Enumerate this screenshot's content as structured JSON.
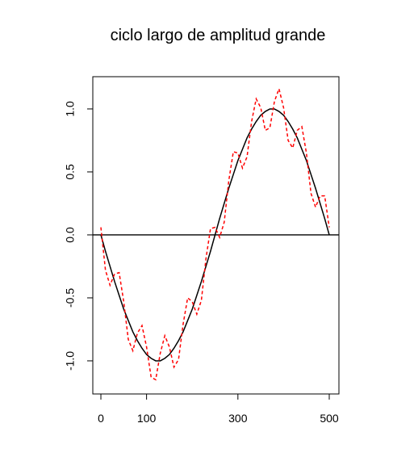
{
  "chart_data": {
    "type": "line",
    "title": "ciclo largo de amplitud grande",
    "x": [
      0,
      10,
      20,
      30,
      40,
      50,
      60,
      70,
      80,
      90,
      100,
      110,
      120,
      130,
      140,
      150,
      160,
      170,
      180,
      190,
      200,
      210,
      220,
      230,
      240,
      250,
      260,
      270,
      280,
      290,
      300,
      310,
      320,
      330,
      340,
      350,
      360,
      370,
      380,
      390,
      400,
      410,
      420,
      430,
      440,
      450,
      460,
      470,
      480,
      490,
      500
    ],
    "series": [
      {
        "color": "#000000",
        "dashed": false,
        "values": [
          0,
          -0.13,
          -0.25,
          -0.37,
          -0.48,
          -0.59,
          -0.68,
          -0.77,
          -0.84,
          -0.9,
          -0.95,
          -0.98,
          -1,
          -1,
          -0.98,
          -0.95,
          -0.9,
          -0.84,
          -0.77,
          -0.68,
          -0.59,
          -0.48,
          -0.37,
          -0.25,
          -0.13,
          0,
          0.13,
          0.25,
          0.37,
          0.48,
          0.59,
          0.68,
          0.77,
          0.84,
          0.9,
          0.95,
          0.98,
          1,
          1,
          0.98,
          0.95,
          0.9,
          0.84,
          0.77,
          0.68,
          0.59,
          0.48,
          0.37,
          0.25,
          0.13,
          0
        ]
      },
      {
        "color": "#ff0000",
        "dashed": true,
        "values": [
          0.06,
          -0.28,
          -0.4,
          -0.31,
          -0.3,
          -0.53,
          -0.83,
          -0.92,
          -0.78,
          -0.72,
          -0.89,
          -1.13,
          -1.15,
          -0.94,
          -0.8,
          -0.89,
          -1.05,
          -0.99,
          -0.71,
          -0.5,
          -0.53,
          -0.63,
          -0.52,
          -0.19,
          0.05,
          0.06,
          -0.02,
          0.1,
          0.43,
          0.66,
          0.65,
          0.53,
          0.62,
          0.9,
          1.08,
          1.01,
          0.83,
          0.85,
          1.06,
          1.16,
          1.01,
          0.75,
          0.69,
          0.83,
          0.86,
          0.65,
          0.33,
          0.22,
          0.31,
          0.31,
          0.06
        ]
      }
    ],
    "hline": 0,
    "xlim": [
      -17.7,
      521.2
    ],
    "ylim": [
      -1.263,
      1.256
    ],
    "xticks": [
      0,
      100,
      300,
      500
    ],
    "yticks": [
      {
        "value": -1,
        "label": "-1.0"
      },
      {
        "value": -0.5,
        "label": "-0.5"
      },
      {
        "value": 0,
        "label": "0.0"
      },
      {
        "value": 0.5,
        "label": "0.5"
      },
      {
        "value": 1,
        "label": "1.0"
      }
    ]
  }
}
